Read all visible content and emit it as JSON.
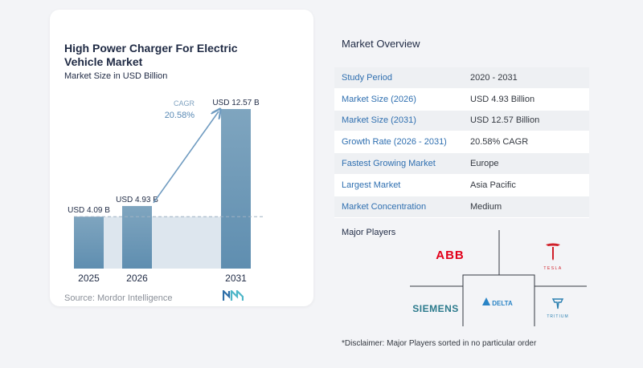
{
  "chart_data": {
    "type": "bar",
    "title": "High Power Charger For Electric Vehicle Market",
    "subtitle": "Market Size in USD Billion",
    "categories": [
      "2025",
      "2026",
      "2031"
    ],
    "values": [
      4.09,
      4.93,
      12.57
    ],
    "value_labels": [
      "USD 4.09 B",
      "USD 4.93 B",
      "USD 12.57 B"
    ],
    "cagr_label": "CAGR",
    "cagr_value": "20.58%",
    "ylim": [
      0,
      12.57
    ],
    "colors": {
      "bar_top": "#7fa5bf",
      "bar_bottom": "#5f8eb0",
      "shade": "#dde6ee",
      "arrow": "#6f9bc0"
    }
  },
  "source": "Source:  Mordor Intelligence",
  "overview": {
    "title": "Market Overview",
    "rows": [
      {
        "label": "Study Period",
        "value": "2020 - 2031"
      },
      {
        "label": "Market Size (2026)",
        "value": "USD 4.93 Billion"
      },
      {
        "label": "Market Size (2031)",
        "value": "USD 12.57 Billion"
      },
      {
        "label": "Growth Rate (2026 - 2031)",
        "value": "20.58% CAGR"
      },
      {
        "label": "Fastest Growing Market",
        "value": "Europe"
      },
      {
        "label": "Largest Market",
        "value": "Asia Pacific"
      },
      {
        "label": "Market Concentration",
        "value": "Medium"
      }
    ]
  },
  "players": {
    "title": "Major Players",
    "names": [
      "ABB",
      "TESLA",
      "SIEMENS",
      "DELTA",
      "TRITIUM"
    ],
    "colors": {
      "abb": "#e2001a",
      "tesla": "#d0202a",
      "siemens": "#2b7a8c",
      "delta": "#2a84c6",
      "tritium": "#2a7fb0"
    }
  },
  "disclaimer": "*Disclaimer: Major Players sorted in no particular order"
}
